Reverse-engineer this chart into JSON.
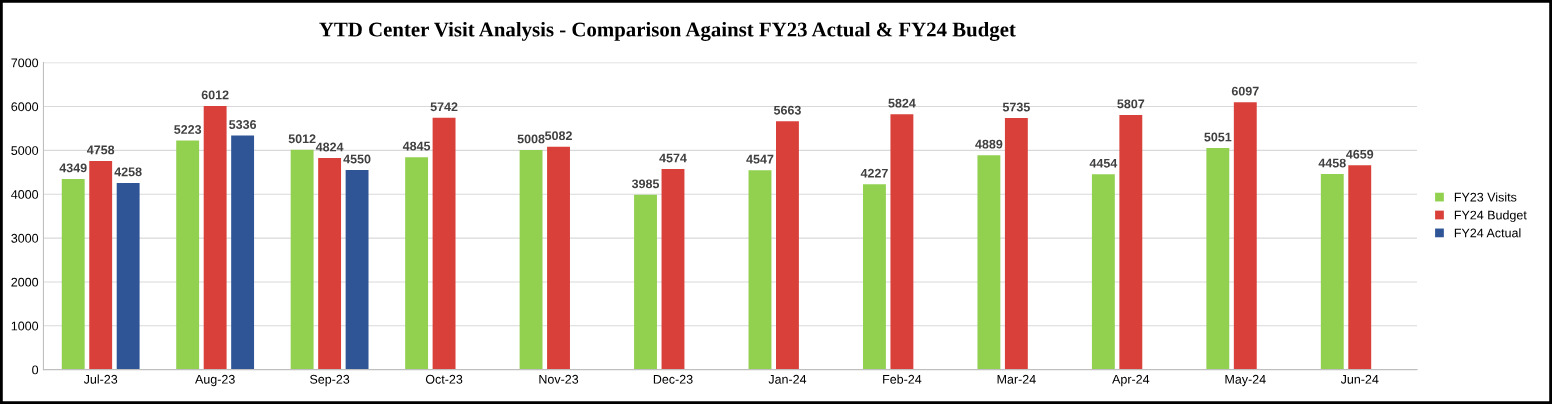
{
  "chart_data": {
    "type": "bar",
    "title": "YTD Center Visit Analysis - Comparison Against FY23 Actual & FY24 Budget",
    "categories": [
      "Jul-23",
      "Aug-23",
      "Sep-23",
      "Oct-23",
      "Nov-23",
      "Dec-23",
      "Jan-24",
      "Feb-24",
      "Mar-24",
      "Apr-24",
      "May-24",
      "Jun-24"
    ],
    "series": [
      {
        "name": "FY23 Visits",
        "color": "#92d050",
        "values": [
          4349,
          5223,
          5012,
          4845,
          5008,
          3985,
          4547,
          4227,
          4889,
          4454,
          5051,
          4458
        ]
      },
      {
        "name": "FY24 Budget",
        "color": "#d9403a",
        "values": [
          4758,
          6012,
          4824,
          5742,
          5082,
          4574,
          5663,
          5824,
          5735,
          5807,
          6097,
          4659
        ]
      },
      {
        "name": "FY24 Actual",
        "color": "#2f5597",
        "values": [
          4258,
          5336,
          4550,
          null,
          null,
          null,
          null,
          null,
          null,
          null,
          null,
          null
        ]
      }
    ],
    "ylim": [
      0,
      7000
    ],
    "yticks": [
      0,
      1000,
      2000,
      3000,
      4000,
      5000,
      6000,
      7000
    ],
    "grid": "y",
    "legend": "right",
    "data_labels": true
  }
}
